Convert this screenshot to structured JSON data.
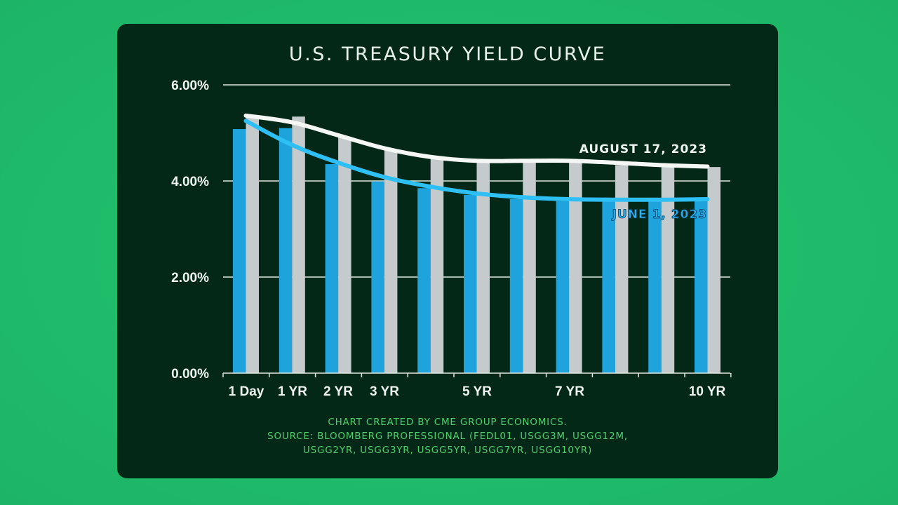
{
  "title": "U.S. TREASURY YIELD CURVE",
  "footer": {
    "line1": "CHART CREATED BY CME GROUP ECONOMICS.",
    "line2": "SOURCE:  BLOOMBERG PROFESSIONAL (FEDL01, USGG3M, USGG12M,",
    "line3": "USGG2YR, USGG3YR, USGG5YR, USGG7YR, USGG10YR)"
  },
  "colors": {
    "background": "#1fbb6a",
    "panel": "#032818",
    "june_series": "#1fa3dd",
    "august_series": "#c5cacc",
    "june_curve": "#2ec0f5",
    "august_curve": "#f4f7f4",
    "footer_text": "#4fcf6e"
  },
  "chart_data": {
    "type": "bar",
    "title": "U.S. TREASURY YIELD CURVE",
    "xlabel": "",
    "ylabel": "",
    "ylim": [
      0,
      6
    ],
    "yticks": [
      "0.00%",
      "2.00%",
      "4.00%",
      "6.00%"
    ],
    "grid": true,
    "categories": [
      "1 Day",
      "1 YR",
      "2 YR",
      "3 YR",
      "",
      "5 YR",
      "",
      "7 YR",
      "",
      "",
      "10 YR"
    ],
    "series": [
      {
        "name": "JUNE 1, 2023",
        "values": [
          5.08,
          5.1,
          4.35,
          3.99,
          3.85,
          3.71,
          3.62,
          3.58,
          3.58,
          3.58,
          3.6
        ],
        "curve": true
      },
      {
        "name": "AUGUST 17, 2023",
        "values": [
          5.36,
          5.34,
          4.92,
          4.64,
          4.5,
          4.38,
          4.38,
          4.38,
          4.33,
          4.29,
          4.29
        ],
        "curve": true
      }
    ],
    "annotations": [
      "AUGUST 17, 2023",
      "JUNE 1, 2023"
    ],
    "source": "CHART CREATED BY CME GROUP ECONOMICS. SOURCE: BLOOMBERG PROFESSIONAL (FEDL01, USGG3M, USGG12M, USGG2YR, USGG3YR, USGG5YR, USGG7YR, USGG10YR)"
  }
}
